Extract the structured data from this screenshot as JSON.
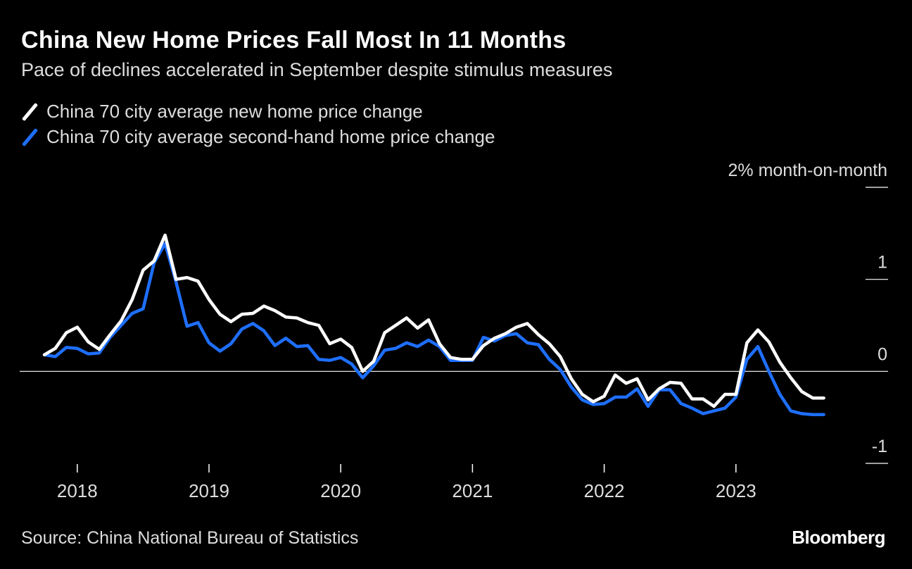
{
  "title": "China New Home Prices Fall Most In 11 Months",
  "subtitle": "Pace of declines accelerated in September despite stimulus measures",
  "source": "Source: China National Bureau of Statistics",
  "brand": "Bloomberg",
  "colors": {
    "background": "#000000",
    "new_home": "#ffffff",
    "second_hand": "#1e6fff",
    "zero_line": "#ffffff"
  },
  "chart_data": {
    "type": "line",
    "title": "China New Home Prices Fall Most In 11 Months",
    "xlabel": "",
    "ylabel": "2% month-on-month",
    "ylim": [
      -1,
      2
    ],
    "y_ticks": [
      {
        "value": 2,
        "label": "2% month-on-month"
      },
      {
        "value": 1,
        "label": "1"
      },
      {
        "value": 0,
        "label": "0"
      },
      {
        "value": -1,
        "label": "-1"
      }
    ],
    "x_start": "2017-10",
    "x_ticks": [
      "2018",
      "2019",
      "2020",
      "2021",
      "2022",
      "2023"
    ],
    "series": [
      {
        "name": "China 70 city average new home price change",
        "color": "#ffffff",
        "values": [
          0.18,
          0.25,
          0.42,
          0.48,
          0.32,
          0.24,
          0.4,
          0.55,
          0.78,
          1.1,
          1.2,
          1.48,
          1.0,
          1.02,
          0.98,
          0.78,
          0.62,
          0.54,
          0.62,
          0.63,
          0.71,
          0.66,
          0.59,
          0.58,
          0.53,
          0.5,
          0.3,
          0.35,
          0.26,
          0.0,
          0.11,
          0.42,
          0.5,
          0.58,
          0.47,
          0.56,
          0.3,
          0.15,
          0.13,
          0.13,
          0.28,
          0.36,
          0.41,
          0.48,
          0.52,
          0.4,
          0.3,
          0.16,
          -0.08,
          -0.25,
          -0.33,
          -0.27,
          -0.04,
          -0.13,
          -0.08,
          -0.31,
          -0.19,
          -0.12,
          -0.13,
          -0.3,
          -0.3,
          -0.38,
          -0.25,
          -0.25,
          0.31,
          0.45,
          0.32,
          0.1,
          -0.07,
          -0.22,
          -0.29,
          -0.29
        ]
      },
      {
        "name": "China 70 city average second-hand home price change",
        "color": "#1e6fff",
        "values": [
          0.18,
          0.16,
          0.26,
          0.25,
          0.19,
          0.2,
          0.37,
          0.5,
          0.63,
          0.68,
          1.18,
          1.39,
          0.97,
          0.49,
          0.53,
          0.31,
          0.22,
          0.3,
          0.46,
          0.52,
          0.44,
          0.28,
          0.36,
          0.27,
          0.28,
          0.13,
          0.12,
          0.15,
          0.08,
          -0.07,
          0.06,
          0.23,
          0.25,
          0.31,
          0.27,
          0.34,
          0.27,
          0.12,
          0.12,
          0.12,
          0.37,
          0.33,
          0.39,
          0.41,
          0.31,
          0.29,
          0.13,
          0.02,
          -0.17,
          -0.31,
          -0.36,
          -0.35,
          -0.28,
          -0.28,
          -0.19,
          -0.38,
          -0.2,
          -0.2,
          -0.35,
          -0.4,
          -0.46,
          -0.43,
          -0.4,
          -0.28,
          0.13,
          0.27,
          0.0,
          -0.25,
          -0.43,
          -0.46,
          -0.47,
          -0.47
        ]
      }
    ]
  }
}
